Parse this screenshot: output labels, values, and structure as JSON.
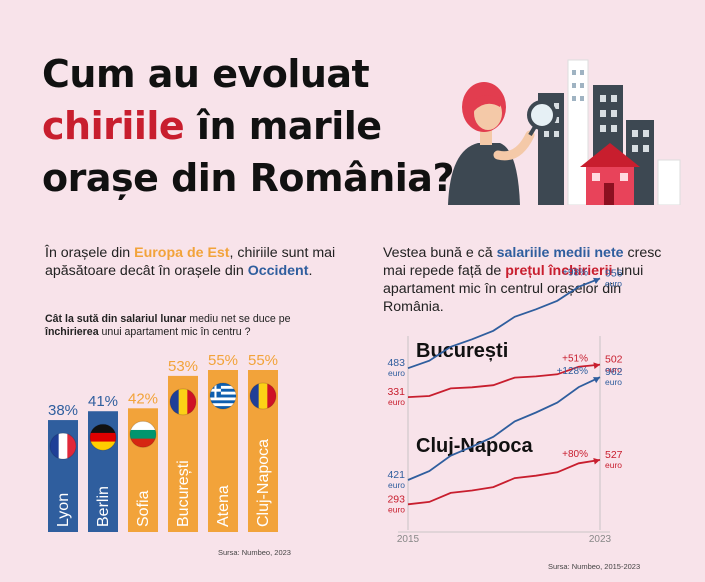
{
  "title": {
    "line1": "Cum au evoluat",
    "highlight": "chiriile",
    "line2_rest": " în marile",
    "line3": "orașe din România?"
  },
  "left": {
    "intro": {
      "p1": "În orașele din ",
      "europa_est": "Europa de Est",
      "p2": ", chiriile sunt mai apăsătoare decât în orașele din ",
      "occident": "Occident",
      "p3": "."
    },
    "question": {
      "p1": "Cât la sută din salariul lunar",
      "p2": " mediu net se duce pe ",
      "p3": "închirierea",
      "p4": " unui apartament mic în centru ?"
    },
    "source": "Sursa: Numbeo, 2023"
  },
  "right": {
    "intro": {
      "p1": "Vestea bună e că ",
      "salarii": "salariile medii nete",
      "p2": " cresc mai repede față de ",
      "pretul": "prețul închirierii",
      "p3": " unui apartament mic în centrul orașelor din România."
    },
    "source": "Sursa: Numbeo, 2015-2023"
  },
  "colors": {
    "blue_bar": "#2f5e9e",
    "orange_bar": "#f2a33a",
    "salary_line": "#2f5e9e",
    "rent_line": "#c81e2e"
  },
  "chart_data": [
    {
      "type": "bar",
      "categories": [
        "Lyon",
        "Berlin",
        "Sofia",
        "București",
        "Atena",
        "Cluj-Napoca"
      ],
      "values": [
        38,
        41,
        42,
        53,
        55,
        55
      ],
      "value_labels": [
        "38%",
        "41%",
        "42%",
        "53%",
        "55%",
        "55%"
      ],
      "bar_colors": [
        "#2f5e9e",
        "#2f5e9e",
        "#f2a33a",
        "#f2a33a",
        "#f2a33a",
        "#f2a33a"
      ],
      "flags": [
        "france-flag-icon",
        "germany-flag-icon",
        "bulgaria-flag-icon",
        "romania-flag-icon",
        "greece-flag-icon",
        "romania-flag-icon"
      ],
      "ylim": [
        0,
        55
      ]
    },
    {
      "type": "line",
      "title": "București",
      "x": [
        2015,
        2023
      ],
      "x_labels": [
        "2015",
        "2023"
      ],
      "series": [
        {
          "name": "salary",
          "start": 483,
          "end": 956,
          "start_label": "483",
          "end_label": "956",
          "unit": "euro",
          "change": "+98%",
          "color": "#2f5e9e"
        },
        {
          "name": "rent",
          "start": 331,
          "end": 502,
          "start_label": "331",
          "end_label": "502",
          "unit": "euro",
          "change": "+51%",
          "color": "#c81e2e"
        }
      ]
    },
    {
      "type": "line",
      "title": "Cluj-Napoca",
      "x": [
        2015,
        2023
      ],
      "x_labels": [
        "2015",
        "2023"
      ],
      "series": [
        {
          "name": "salary",
          "start": 421,
          "end": 962,
          "start_label": "421",
          "end_label": "962",
          "unit": "euro",
          "change": "+128%",
          "color": "#2f5e9e"
        },
        {
          "name": "rent",
          "start": 293,
          "end": 527,
          "start_label": "293",
          "end_label": "527",
          "unit": "euro",
          "change": "+80%",
          "color": "#c81e2e"
        }
      ]
    }
  ]
}
